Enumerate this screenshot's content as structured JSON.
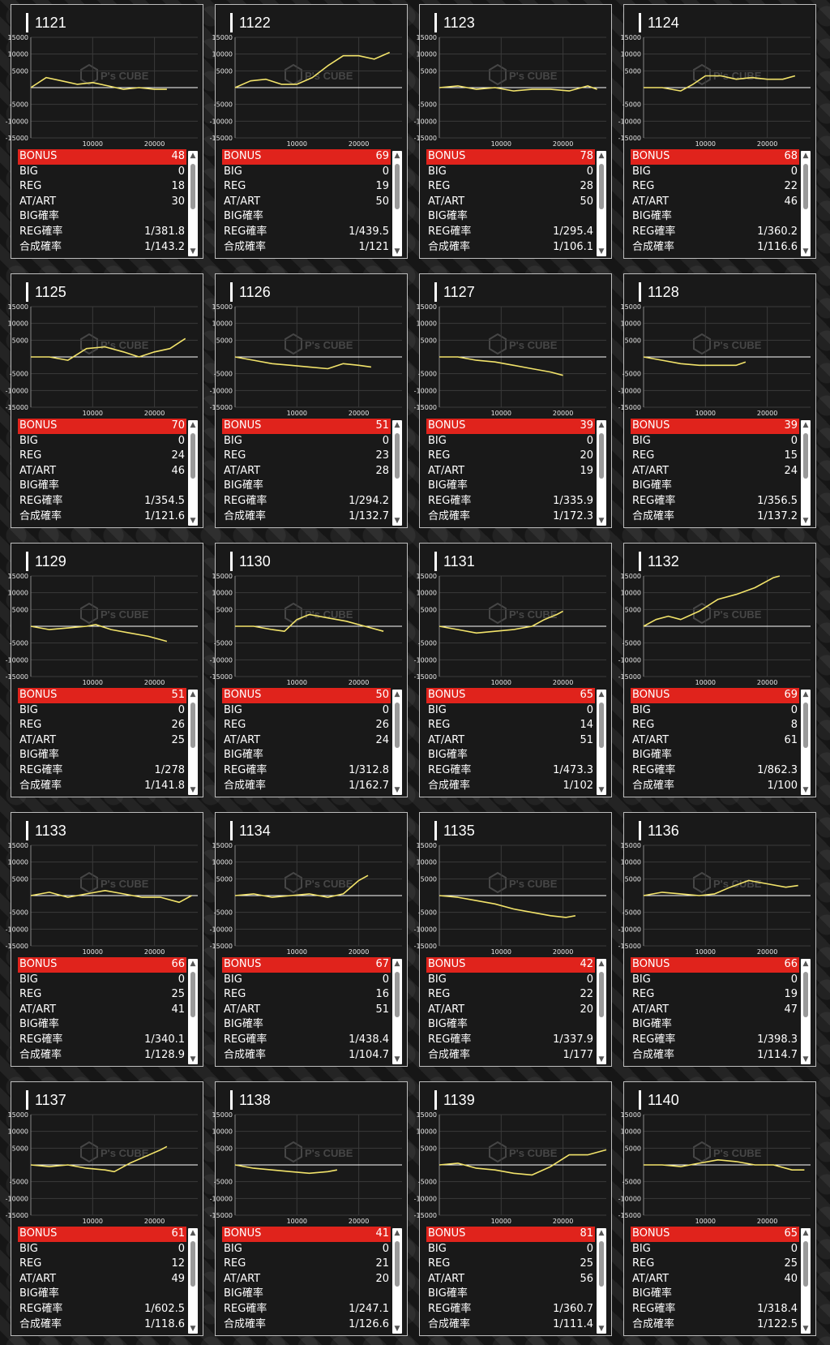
{
  "labels": {
    "bonus": "BONUS",
    "big": "BIG",
    "reg": "REG",
    "at": "AT/ART",
    "big_rate": "BIG確率",
    "reg_rate": "REG確率",
    "total_rate": "合成確率"
  },
  "colors": {
    "line": "#f2e36a",
    "bonus_row": "#e0231c",
    "axis": "#ffffff"
  },
  "machines": [
    {
      "title": "1121",
      "bonus": "48",
      "big": "0",
      "reg": "18",
      "at": "30",
      "big_rate": "",
      "reg_rate": "1/381.8",
      "total_rate": "1/143.2"
    },
    {
      "title": "1122",
      "bonus": "69",
      "big": "0",
      "reg": "19",
      "at": "50",
      "big_rate": "",
      "reg_rate": "1/439.5",
      "total_rate": "1/121"
    },
    {
      "title": "1123",
      "bonus": "78",
      "big": "0",
      "reg": "28",
      "at": "50",
      "big_rate": "",
      "reg_rate": "1/295.4",
      "total_rate": "1/106.1"
    },
    {
      "title": "1124",
      "bonus": "68",
      "big": "0",
      "reg": "22",
      "at": "46",
      "big_rate": "",
      "reg_rate": "1/360.2",
      "total_rate": "1/116.6"
    },
    {
      "title": "1125",
      "bonus": "70",
      "big": "0",
      "reg": "24",
      "at": "46",
      "big_rate": "",
      "reg_rate": "1/354.5",
      "total_rate": "1/121.6"
    },
    {
      "title": "1126",
      "bonus": "51",
      "big": "0",
      "reg": "23",
      "at": "28",
      "big_rate": "",
      "reg_rate": "1/294.2",
      "total_rate": "1/132.7"
    },
    {
      "title": "1127",
      "bonus": "39",
      "big": "0",
      "reg": "20",
      "at": "19",
      "big_rate": "",
      "reg_rate": "1/335.9",
      "total_rate": "1/172.3"
    },
    {
      "title": "1128",
      "bonus": "39",
      "big": "0",
      "reg": "15",
      "at": "24",
      "big_rate": "",
      "reg_rate": "1/356.5",
      "total_rate": "1/137.2"
    },
    {
      "title": "1129",
      "bonus": "51",
      "big": "0",
      "reg": "26",
      "at": "25",
      "big_rate": "",
      "reg_rate": "1/278",
      "total_rate": "1/141.8"
    },
    {
      "title": "1130",
      "bonus": "50",
      "big": "0",
      "reg": "26",
      "at": "24",
      "big_rate": "",
      "reg_rate": "1/312.8",
      "total_rate": "1/162.7"
    },
    {
      "title": "1131",
      "bonus": "65",
      "big": "0",
      "reg": "14",
      "at": "51",
      "big_rate": "",
      "reg_rate": "1/473.3",
      "total_rate": "1/102"
    },
    {
      "title": "1132",
      "bonus": "69",
      "big": "0",
      "reg": "8",
      "at": "61",
      "big_rate": "",
      "reg_rate": "1/862.3",
      "total_rate": "1/100"
    },
    {
      "title": "1133",
      "bonus": "66",
      "big": "0",
      "reg": "25",
      "at": "41",
      "big_rate": "",
      "reg_rate": "1/340.1",
      "total_rate": "1/128.9"
    },
    {
      "title": "1134",
      "bonus": "67",
      "big": "0",
      "reg": "16",
      "at": "51",
      "big_rate": "",
      "reg_rate": "1/438.4",
      "total_rate": "1/104.7"
    },
    {
      "title": "1135",
      "bonus": "42",
      "big": "0",
      "reg": "22",
      "at": "20",
      "big_rate": "",
      "reg_rate": "1/337.9",
      "total_rate": "1/177"
    },
    {
      "title": "1136",
      "bonus": "66",
      "big": "0",
      "reg": "19",
      "at": "47",
      "big_rate": "",
      "reg_rate": "1/398.3",
      "total_rate": "1/114.7"
    },
    {
      "title": "1137",
      "bonus": "61",
      "big": "0",
      "reg": "12",
      "at": "49",
      "big_rate": "",
      "reg_rate": "1/602.5",
      "total_rate": "1/118.6"
    },
    {
      "title": "1138",
      "bonus": "41",
      "big": "0",
      "reg": "21",
      "at": "20",
      "big_rate": "",
      "reg_rate": "1/247.1",
      "total_rate": "1/126.6"
    },
    {
      "title": "1139",
      "bonus": "81",
      "big": "0",
      "reg": "25",
      "at": "56",
      "big_rate": "",
      "reg_rate": "1/360.7",
      "total_rate": "1/111.4"
    },
    {
      "title": "1140",
      "bonus": "65",
      "big": "0",
      "reg": "25",
      "at": "40",
      "big_rate": "",
      "reg_rate": "1/318.4",
      "total_rate": "1/122.5"
    }
  ],
  "chart_data": [
    {
      "type": "line",
      "title": "1121",
      "x": [
        0,
        2500,
        5000,
        7500,
        10000,
        12500,
        15000,
        17500,
        20000,
        22000
      ],
      "y": [
        0,
        3000,
        2000,
        1000,
        1500,
        500,
        -500,
        0,
        -500,
        -500
      ],
      "xlim": [
        0,
        27000
      ],
      "ylim": [
        -15000,
        15000
      ],
      "yticks": [
        15000,
        10000,
        5000,
        -5000,
        -10000,
        -15000
      ],
      "xticks": [
        10000,
        20000
      ],
      "grid": true,
      "legend": "none"
    },
    {
      "title": "1122",
      "type": "line",
      "x": [
        0,
        2500,
        5000,
        7500,
        10000,
        12500,
        15000,
        17500,
        20000,
        22500,
        25000
      ],
      "y": [
        0,
        2000,
        2500,
        1000,
        1000,
        3000,
        6500,
        9500,
        9500,
        8500,
        10500
      ],
      "xlim": [
        0,
        27000
      ],
      "ylim": [
        -15000,
        15000
      ],
      "yticks": [
        15000,
        10000,
        5000,
        -5000,
        -10000,
        -15000
      ],
      "xticks": [
        10000,
        20000
      ],
      "grid": true,
      "legend": "none"
    },
    {
      "title": "1123",
      "type": "line",
      "x": [
        0,
        3000,
        6000,
        9000,
        12000,
        15000,
        18000,
        21000,
        24000,
        25500
      ],
      "y": [
        0,
        500,
        -500,
        0,
        -1000,
        -500,
        -500,
        -1000,
        500,
        -500
      ],
      "xlim": [
        0,
        27000
      ],
      "ylim": [
        -15000,
        15000
      ],
      "yticks": [
        15000,
        10000,
        5000,
        -5000,
        -10000,
        -15000
      ],
      "xticks": [
        10000,
        20000
      ],
      "grid": true,
      "legend": "none"
    },
    {
      "title": "1124",
      "type": "line",
      "x": [
        0,
        3000,
        6000,
        8000,
        10000,
        12500,
        15000,
        17500,
        20000,
        22500,
        24500
      ],
      "y": [
        0,
        0,
        -1000,
        1000,
        3500,
        3500,
        2500,
        3000,
        2500,
        2500,
        3500
      ],
      "xlim": [
        0,
        27000
      ],
      "ylim": [
        -15000,
        15000
      ],
      "yticks": [
        15000,
        10000,
        5000,
        -5000,
        -10000,
        -15000
      ],
      "xticks": [
        10000,
        20000
      ],
      "grid": true,
      "legend": "none"
    },
    {
      "title": "1125",
      "type": "line",
      "x": [
        0,
        3000,
        6000,
        9000,
        12000,
        15000,
        17500,
        20000,
        22500,
        25000
      ],
      "y": [
        0,
        0,
        -1000,
        2500,
        3000,
        1500,
        0,
        1500,
        2500,
        5500
      ],
      "xlim": [
        0,
        27000
      ],
      "ylim": [
        -15000,
        15000
      ],
      "yticks": [
        15000,
        10000,
        5000,
        -5000,
        -10000,
        -15000
      ],
      "xticks": [
        10000,
        20000
      ],
      "grid": true,
      "legend": "none"
    },
    {
      "title": "1126",
      "type": "line",
      "x": [
        0,
        3000,
        6000,
        9000,
        12000,
        15000,
        17500,
        20000,
        22000
      ],
      "y": [
        0,
        -1000,
        -2000,
        -2500,
        -3000,
        -3500,
        -2000,
        -2500,
        -3000
      ],
      "xlim": [
        0,
        27000
      ],
      "ylim": [
        -15000,
        15000
      ],
      "yticks": [
        15000,
        10000,
        5000,
        -5000,
        -10000,
        -15000
      ],
      "xticks": [
        10000,
        20000
      ],
      "grid": true,
      "legend": "none"
    },
    {
      "title": "1127",
      "type": "line",
      "x": [
        0,
        3000,
        6000,
        9000,
        12000,
        15000,
        18000,
        20000
      ],
      "y": [
        0,
        0,
        -1000,
        -1500,
        -2500,
        -3500,
        -4500,
        -5500
      ],
      "xlim": [
        0,
        27000
      ],
      "ylim": [
        -15000,
        15000
      ],
      "yticks": [
        15000,
        10000,
        5000,
        -5000,
        -10000,
        -15000
      ],
      "xticks": [
        10000,
        20000
      ],
      "grid": true,
      "legend": "none"
    },
    {
      "title": "1128",
      "type": "line",
      "x": [
        0,
        3000,
        6000,
        9000,
        12000,
        15000,
        16500
      ],
      "y": [
        0,
        -1000,
        -2000,
        -2500,
        -2500,
        -2500,
        -1500
      ],
      "xlim": [
        0,
        27000
      ],
      "ylim": [
        -15000,
        15000
      ],
      "yticks": [
        15000,
        10000,
        5000,
        -5000,
        -10000,
        -15000
      ],
      "xticks": [
        10000,
        20000
      ],
      "grid": true,
      "legend": "none"
    },
    {
      "title": "1129",
      "type": "line",
      "x": [
        0,
        3000,
        6000,
        9000,
        10500,
        13000,
        16000,
        19000,
        22000
      ],
      "y": [
        0,
        -1000,
        -500,
        0,
        500,
        -1000,
        -2000,
        -3000,
        -4500
      ],
      "xlim": [
        0,
        27000
      ],
      "ylim": [
        -15000,
        15000
      ],
      "yticks": [
        15000,
        10000,
        5000,
        -5000,
        -10000,
        -15000
      ],
      "xticks": [
        10000,
        20000
      ],
      "grid": true,
      "legend": "none"
    },
    {
      "title": "1130",
      "type": "line",
      "x": [
        0,
        3000,
        6000,
        8000,
        10000,
        12000,
        15000,
        18000,
        21000,
        24000
      ],
      "y": [
        0,
        0,
        -1000,
        -1500,
        2000,
        3500,
        2500,
        1500,
        0,
        -1500
      ],
      "xlim": [
        0,
        27000
      ],
      "ylim": [
        -15000,
        15000
      ],
      "yticks": [
        15000,
        10000,
        5000,
        -5000,
        -10000,
        -15000
      ],
      "xticks": [
        10000,
        20000
      ],
      "grid": true,
      "legend": "none"
    },
    {
      "title": "1131",
      "type": "line",
      "x": [
        0,
        3000,
        6000,
        9000,
        12000,
        15000,
        17000,
        19000,
        20000
      ],
      "y": [
        0,
        -1000,
        -2000,
        -1500,
        -1000,
        0,
        2000,
        3500,
        4500
      ],
      "xlim": [
        0,
        27000
      ],
      "ylim": [
        -15000,
        15000
      ],
      "yticks": [
        15000,
        10000,
        5000,
        -5000,
        -10000,
        -15000
      ],
      "xticks": [
        10000,
        20000
      ],
      "grid": true,
      "legend": "none"
    },
    {
      "title": "1132",
      "type": "line",
      "x": [
        0,
        2000,
        4000,
        6000,
        9000,
        12000,
        15000,
        18000,
        21000,
        22000
      ],
      "y": [
        0,
        2000,
        3000,
        2000,
        4500,
        8000,
        9500,
        11500,
        14500,
        15000
      ],
      "xlim": [
        0,
        27000
      ],
      "ylim": [
        -15000,
        15000
      ],
      "yticks": [
        15000,
        10000,
        5000,
        -5000,
        -10000,
        -15000
      ],
      "xticks": [
        10000,
        20000
      ],
      "grid": true,
      "legend": "none"
    },
    {
      "title": "1133",
      "type": "line",
      "x": [
        0,
        3000,
        6000,
        9000,
        12000,
        15000,
        18000,
        21000,
        24000,
        26000
      ],
      "y": [
        0,
        1000,
        -500,
        500,
        1500,
        500,
        -500,
        -500,
        -2000,
        0
      ],
      "xlim": [
        0,
        27000
      ],
      "ylim": [
        -15000,
        15000
      ],
      "yticks": [
        15000,
        10000,
        5000,
        -5000,
        -10000,
        -15000
      ],
      "xticks": [
        10000,
        20000
      ],
      "grid": true,
      "legend": "none"
    },
    {
      "title": "1134",
      "type": "line",
      "x": [
        0,
        3000,
        6000,
        9000,
        12000,
        15000,
        17500,
        20000,
        21500
      ],
      "y": [
        0,
        500,
        -500,
        0,
        500,
        -500,
        500,
        4500,
        6000
      ],
      "xlim": [
        0,
        27000
      ],
      "ylim": [
        -15000,
        15000
      ],
      "yticks": [
        15000,
        10000,
        5000,
        -5000,
        -10000,
        -15000
      ],
      "xticks": [
        10000,
        20000
      ],
      "grid": true,
      "legend": "none"
    },
    {
      "title": "1135",
      "type": "line",
      "x": [
        0,
        3000,
        6000,
        9000,
        12000,
        15000,
        18000,
        20500,
        22000
      ],
      "y": [
        0,
        -500,
        -1500,
        -2500,
        -4000,
        -5000,
        -6000,
        -6500,
        -6000
      ],
      "xlim": [
        0,
        27000
      ],
      "ylim": [
        -15000,
        15000
      ],
      "yticks": [
        15000,
        10000,
        5000,
        -5000,
        -10000,
        -15000
      ],
      "xticks": [
        10000,
        20000
      ],
      "grid": true,
      "legend": "none"
    },
    {
      "title": "1136",
      "type": "line",
      "x": [
        0,
        3000,
        6000,
        9000,
        11500,
        14000,
        17000,
        20000,
        23000,
        25000
      ],
      "y": [
        0,
        1000,
        500,
        0,
        500,
        2500,
        4500,
        3500,
        2500,
        3000
      ],
      "xlim": [
        0,
        27000
      ],
      "ylim": [
        -15000,
        15000
      ],
      "yticks": [
        15000,
        10000,
        5000,
        -5000,
        -10000,
        -15000
      ],
      "xticks": [
        10000,
        20000
      ],
      "grid": true,
      "legend": "none"
    },
    {
      "title": "1137",
      "type": "line",
      "x": [
        0,
        3000,
        6000,
        9000,
        12000,
        13500,
        16000,
        18500,
        21000,
        22000
      ],
      "y": [
        0,
        -500,
        0,
        -1000,
        -1500,
        -2000,
        500,
        2500,
        4500,
        5500
      ],
      "xlim": [
        0,
        27000
      ],
      "ylim": [
        -15000,
        15000
      ],
      "yticks": [
        15000,
        10000,
        5000,
        -5000,
        -10000,
        -15000
      ],
      "xticks": [
        10000,
        20000
      ],
      "grid": true,
      "legend": "none"
    },
    {
      "title": "1138",
      "type": "line",
      "x": [
        0,
        3000,
        6000,
        9000,
        12000,
        15000,
        16500
      ],
      "y": [
        0,
        -1000,
        -1500,
        -2000,
        -2500,
        -2000,
        -1500
      ],
      "xlim": [
        0,
        27000
      ],
      "ylim": [
        -15000,
        15000
      ],
      "yticks": [
        15000,
        10000,
        5000,
        -5000,
        -10000,
        -15000
      ],
      "xticks": [
        10000,
        20000
      ],
      "grid": true,
      "legend": "none"
    },
    {
      "title": "1139",
      "type": "line",
      "x": [
        0,
        3000,
        6000,
        9000,
        12000,
        15000,
        18000,
        21000,
        24000,
        27000
      ],
      "y": [
        0,
        500,
        -1000,
        -1500,
        -2500,
        -3000,
        -500,
        3000,
        3000,
        4500
      ],
      "xlim": [
        0,
        27000
      ],
      "ylim": [
        -15000,
        15000
      ],
      "yticks": [
        15000,
        10000,
        5000,
        -5000,
        -10000,
        -15000
      ],
      "xticks": [
        10000,
        20000
      ],
      "grid": true,
      "legend": "none"
    },
    {
      "title": "1140",
      "type": "line",
      "x": [
        0,
        3000,
        6000,
        9000,
        12000,
        15000,
        18000,
        21000,
        24000,
        26000
      ],
      "y": [
        0,
        0,
        -500,
        500,
        1500,
        1000,
        0,
        0,
        -1500,
        -1500
      ],
      "xlim": [
        0,
        27000
      ],
      "ylim": [
        -15000,
        15000
      ],
      "yticks": [
        15000,
        10000,
        5000,
        -5000,
        -10000,
        -15000
      ],
      "xticks": [
        10000,
        20000
      ],
      "grid": true,
      "legend": "none"
    }
  ]
}
